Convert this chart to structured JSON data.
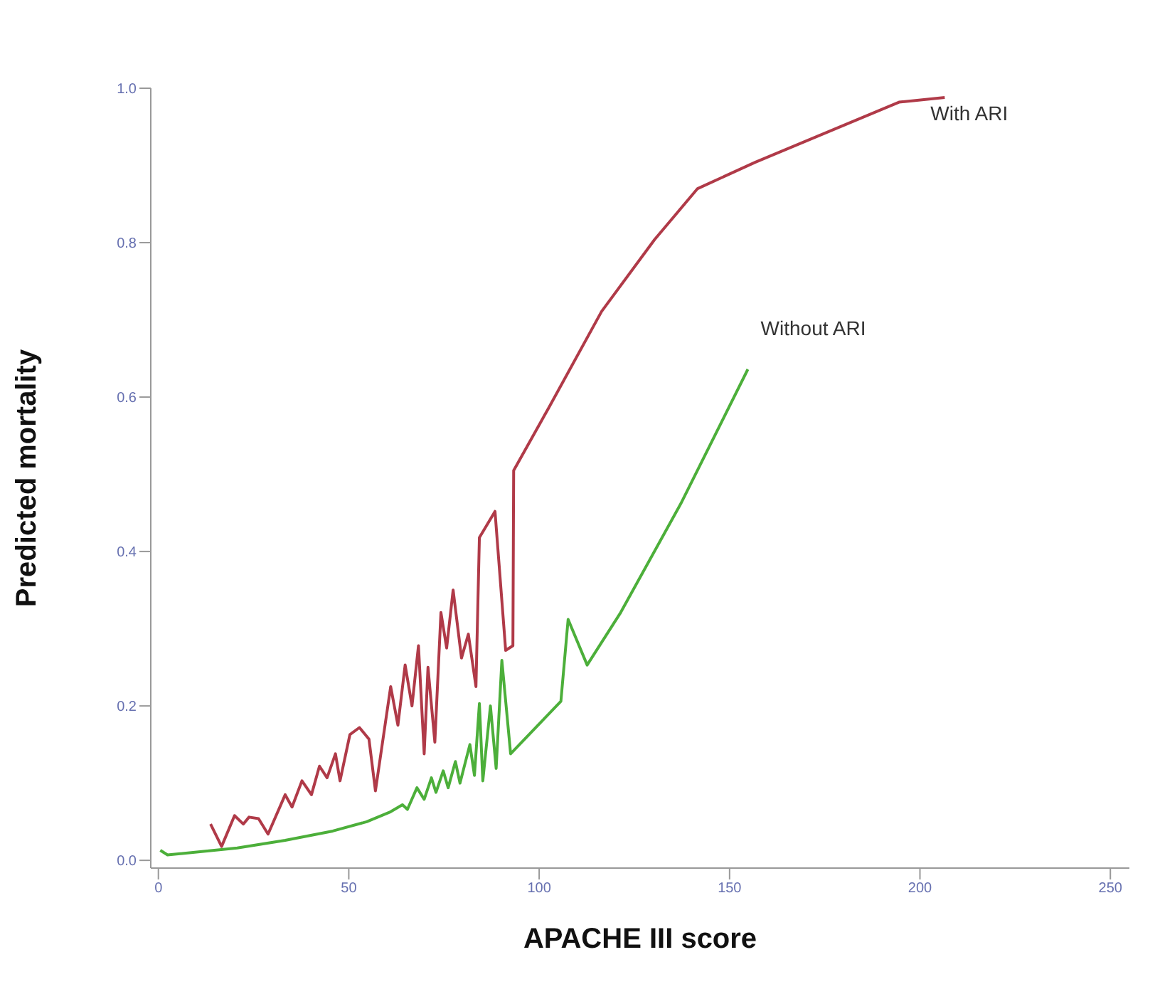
{
  "chart_data": {
    "type": "line",
    "xlabel": "APACHE III score",
    "ylabel": "Predicted mortality",
    "xlim": [
      -2,
      255
    ],
    "ylim": [
      -0.01,
      1.0
    ],
    "xticks": [
      0,
      50,
      100,
      150,
      200,
      250
    ],
    "yticks": [
      {
        "value": 0,
        "label": "0.0"
      },
      {
        "value": 0.2,
        "label": "0.2"
      },
      {
        "value": 0.4,
        "label": "0.4"
      },
      {
        "value": 0.6,
        "label": "0.6"
      },
      {
        "value": 0.8,
        "label": "0.8"
      },
      {
        "value": 1,
        "label": "1.0"
      }
    ],
    "marker": "none",
    "line_style": "solid",
    "series": [
      {
        "name": "With ARI",
        "color": "#b03a48",
        "x": [
          13.7,
          16.6,
          20,
          22.3,
          23.8,
          26.3,
          28.8,
          33.3,
          35.1,
          37.7,
          40.2,
          42.3,
          44.3,
          46.5,
          47.7,
          50.3,
          52.8,
          55.3,
          57,
          61,
          62.9,
          64.8,
          66.6,
          68.3,
          69.8,
          70.8,
          72.6,
          74.2,
          75.7,
          77.4,
          79.6,
          81.4,
          83.4,
          84.3,
          88.4,
          91.2,
          93.1,
          93.3,
          102.5,
          116.4,
          130.3,
          141.6,
          156.7,
          194.5,
          206.5
        ],
        "values": [
          0.047,
          0.018,
          0.058,
          0.047,
          0.056,
          0.054,
          0.034,
          0.085,
          0.069,
          0.103,
          0.085,
          0.122,
          0.107,
          0.138,
          0.103,
          0.163,
          0.172,
          0.157,
          0.09,
          0.225,
          0.175,
          0.253,
          0.2,
          0.278,
          0.138,
          0.25,
          0.153,
          0.321,
          0.275,
          0.35,
          0.262,
          0.293,
          0.225,
          0.418,
          0.452,
          0.272,
          0.278,
          0.505,
          0.586,
          0.711,
          0.804,
          0.87,
          0.904,
          0.982,
          0.988
        ]
      },
      {
        "name": "Without ARI",
        "color": "#4caf3a",
        "x": [
          0.5,
          2.4,
          20.7,
          33.3,
          45.8,
          54.7,
          61,
          64.1,
          65.4,
          67.9,
          69.8,
          71.7,
          72.9,
          74.8,
          76.1,
          78,
          79.2,
          81.8,
          83,
          84.3,
          85.2,
          87.2,
          88.7,
          90.2,
          92.5,
          105.7,
          107.6,
          112.6,
          121.4,
          137.2,
          154.8
        ],
        "values": [
          0.013,
          0.007,
          0.016,
          0.026,
          0.038,
          0.05,
          0.063,
          0.072,
          0.066,
          0.094,
          0.079,
          0.107,
          0.088,
          0.116,
          0.094,
          0.128,
          0.1,
          0.15,
          0.11,
          0.203,
          0.103,
          0.2,
          0.119,
          0.259,
          0.138,
          0.206,
          0.312,
          0.253,
          0.321,
          0.462,
          0.636
        ]
      }
    ]
  }
}
